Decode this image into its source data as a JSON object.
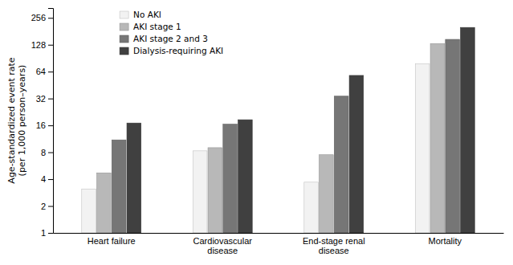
{
  "chart_data": {
    "type": "bar",
    "categories": [
      "Heart failure",
      "Cardiovascular\ndisease",
      "End-stage renal\ndisease",
      "Mortality"
    ],
    "series": [
      {
        "name": "No AKI",
        "color": "#f2f2f2",
        "values": [
          3.1,
          8.3,
          3.7,
          78
        ]
      },
      {
        "name": "AKI stage 1",
        "color": "#b8b8b8",
        "values": [
          4.7,
          9.0,
          7.5,
          132
        ]
      },
      {
        "name": "AKI stage 2 and 3",
        "color": "#767676",
        "values": [
          11.0,
          16.5,
          34.0,
          147
        ]
      },
      {
        "name": "Dialysis-requiring AKI",
        "color": "#404040",
        "values": [
          17.0,
          18.5,
          58.0,
          200
        ]
      }
    ],
    "ylabel": "Age-standardized event rate\n(per 1,000 person–years)",
    "ylim": [
      1,
      330
    ],
    "yticks": [
      1,
      2,
      4,
      8,
      16,
      32,
      64,
      128,
      256
    ],
    "log": "y",
    "grid": false,
    "legend": "upper left"
  }
}
